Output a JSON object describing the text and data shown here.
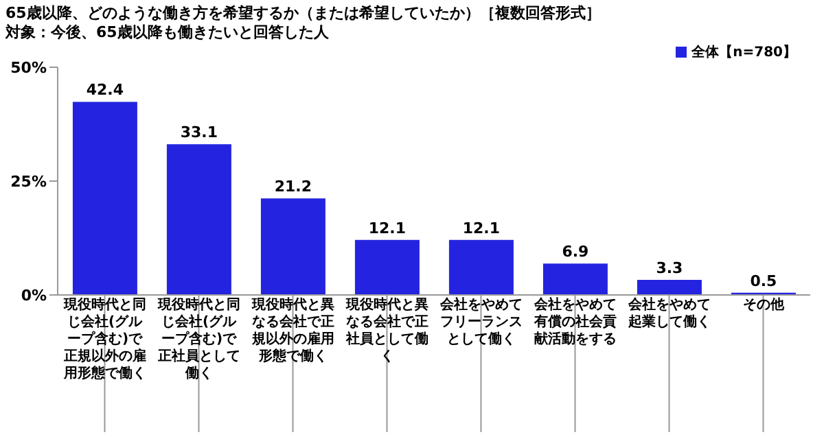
{
  "chart_data": {
    "type": "bar",
    "title": "65歳以降、どのような働き方を希望するか（または希望していたか）［複数回答形式］",
    "subtitle": "対象：今後、65歳以降も働きたいと回答した人",
    "categories": [
      "現役時代と同じ会社(グループ含む)で正規以外の雇用形態で働く",
      "現役時代と同じ会社(グループ含む)で正社員として働く",
      "現役時代と異なる会社で正規以外の雇用形態で働く",
      "現役時代と異なる会社で正社員として働く",
      "会社をやめてフリーランスとして働く",
      "会社をやめて有償の社会貢献活動をする",
      "会社をやめて起業して働く",
      "その他"
    ],
    "series": [
      {
        "name": "全体【n=780】",
        "color": "#2424e0",
        "values": [
          42.4,
          33.1,
          21.2,
          12.1,
          12.1,
          6.9,
          3.3,
          0.5
        ]
      }
    ],
    "ylim": [
      0,
      50
    ],
    "yticks": [
      {
        "value": 0,
        "label": "0%"
      },
      {
        "value": 25,
        "label": "25%"
      },
      {
        "value": 50,
        "label": "50%"
      }
    ],
    "data_labels": true,
    "legend": "top right"
  }
}
